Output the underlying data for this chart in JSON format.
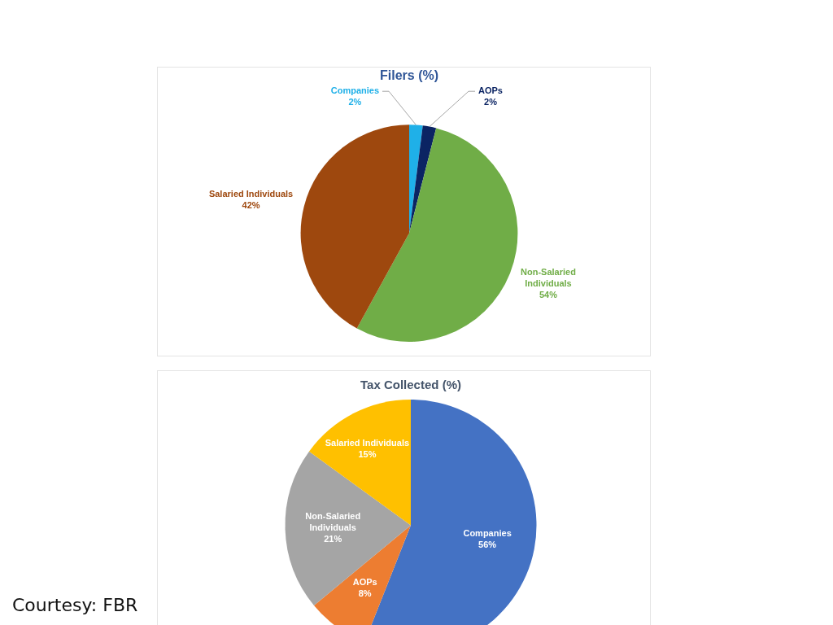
{
  "chart_data": [
    {
      "type": "pie",
      "title": "Filers (%)",
      "categories": [
        "Companies",
        "AOPs",
        "Non-Salaried Individuals",
        "Salaried Individuals"
      ],
      "values": [
        2,
        2,
        54,
        42
      ],
      "colors": [
        "#1fb0e8",
        "#0b2463",
        "#70ad47",
        "#9e480e"
      ],
      "value_labels": [
        "2%",
        "2%",
        "54%",
        "42%"
      ]
    },
    {
      "type": "pie",
      "title": "Tax Collected (%)",
      "categories": [
        "Companies",
        "AOPs",
        "Non-Salaried Individuals",
        "Salaried Individuals"
      ],
      "values": [
        56,
        8,
        21,
        15
      ],
      "colors": [
        "#4472c4",
        "#ed7d31",
        "#a5a5a5",
        "#ffc000"
      ],
      "value_labels": [
        "56%",
        "8%",
        "21%",
        "15%"
      ],
      "annotations": [
        "Courtesy: FBR"
      ]
    }
  ]
}
